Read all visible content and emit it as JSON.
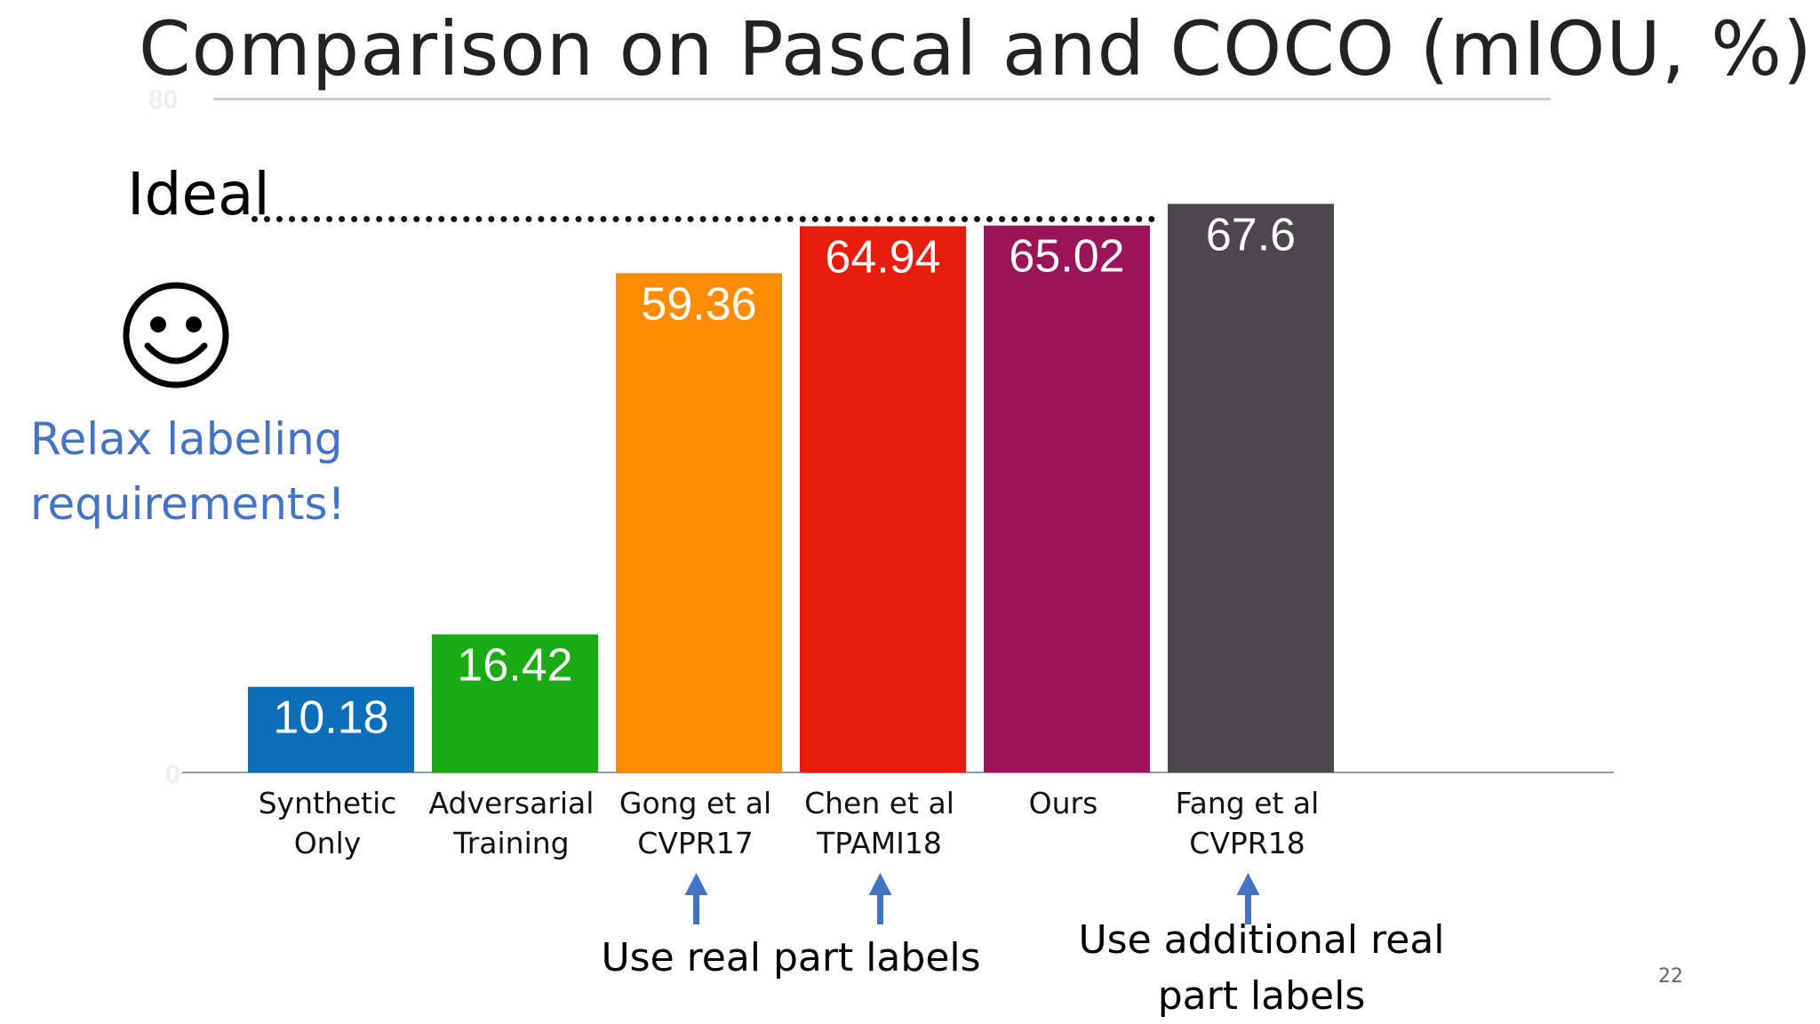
{
  "slide": {
    "title": "Comparison on Pascal and COCO (mIOU, %)",
    "ideal_label": "Ideal",
    "smiley_icon": "smiley-face-icon",
    "relax_note": [
      "Relax labeling",
      "requirements!"
    ],
    "page_number": "22"
  },
  "chart_data": {
    "type": "bar",
    "title": "",
    "xlabel": "",
    "ylabel": "",
    "ylim": [
      0,
      80
    ],
    "yticks": [
      "0",
      "80"
    ],
    "grid": false,
    "categories": [
      [
        "Synthetic",
        "Only"
      ],
      [
        "Adversarial",
        "Training"
      ],
      [
        "Gong et al",
        "CVPR17"
      ],
      [
        "Chen et al",
        "TPAMI18"
      ],
      [
        "Ours"
      ],
      [
        "Fang et al",
        "CVPR18"
      ]
    ],
    "values": [
      10.18,
      16.42,
      59.36,
      64.94,
      65.02,
      67.6
    ],
    "value_labels": [
      "10.18",
      "16.42",
      "59.36",
      "64.94",
      "65.02",
      "67.6"
    ],
    "colors": [
      "#0a6fb8",
      "#1aab14",
      "#ff8c00",
      "#e81c0c",
      "#991459",
      "#4a484b"
    ],
    "annotations": [
      {
        "text": [
          "Use real part labels"
        ],
        "arrows_to": [
          2,
          3
        ]
      },
      {
        "text": [
          "Use additional real",
          "part labels"
        ],
        "arrows_to": [
          5
        ]
      }
    ],
    "arrow_color": "#4472c4"
  }
}
